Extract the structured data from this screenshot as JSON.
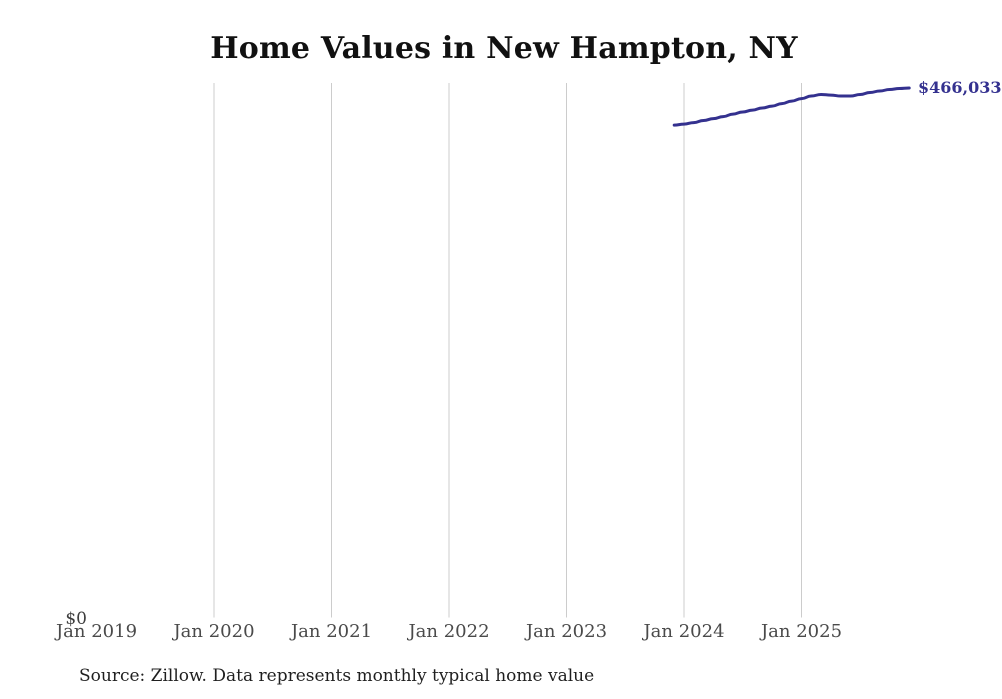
{
  "title": "Home Values in New Hampton, NY",
  "source_note": "Source: Zillow. Data represents monthly typical home value",
  "y_zero_label": "$0",
  "end_value_label": "$466,033",
  "colors": {
    "line": "#34318f",
    "end_label": "#34318f",
    "gridline": "#cccccc",
    "axis_label": "#4a4a4a",
    "title": "#111111",
    "source": "#1f1f1f",
    "background": "#ffffff"
  },
  "chart_data": {
    "type": "line",
    "title": "Home Values in New Hampton, NY",
    "xlabel": "",
    "ylabel": "",
    "ylim": [
      0,
      471000
    ],
    "grid": "vertical-only",
    "x_ticks": [
      "Jan 2019",
      "Jan 2020",
      "Jan 2021",
      "Jan 2022",
      "Jan 2023",
      "Jan 2024",
      "Jan 2025"
    ],
    "gridline_ticks": [
      "Jan 2020",
      "Jan 2021",
      "Jan 2022",
      "Jan 2023",
      "Jan 2024",
      "Jan 2025"
    ],
    "series": [
      {
        "name": "Monthly typical home value",
        "x": [
          "Dec 2023",
          "Jan 2024",
          "Feb 2024",
          "Mar 2024",
          "Apr 2024",
          "May 2024",
          "Jun 2024",
          "Jul 2024",
          "Aug 2024",
          "Sep 2024",
          "Oct 2024",
          "Nov 2024",
          "Dec 2024",
          "Jan 2025",
          "Feb 2025",
          "Mar 2025",
          "Apr 2025",
          "May 2025",
          "Jun 2025",
          "Jul 2025",
          "Aug 2025",
          "Sep 2025",
          "Oct 2025",
          "Nov 2025",
          "Dec 2025"
        ],
        "values": [
          433400,
          434300,
          435600,
          437400,
          439100,
          440900,
          443100,
          444900,
          446600,
          448400,
          450100,
          452300,
          454500,
          456700,
          459000,
          460300,
          459800,
          459000,
          459000,
          460300,
          462100,
          463400,
          464700,
          465600,
          466033
        ]
      }
    ],
    "annotations": [
      {
        "text": "$466,033",
        "position": "line-end",
        "note": "clipped at right edge of image"
      }
    ]
  }
}
